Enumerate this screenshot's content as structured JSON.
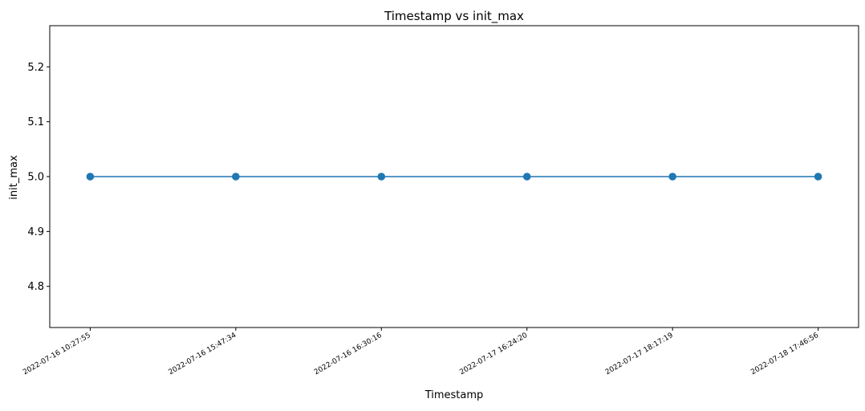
{
  "chart_data": {
    "type": "line",
    "title": "Timestamp vs init_max",
    "xlabel": "Timestamp",
    "ylabel": "init_max",
    "categories": [
      "2022-07-16 10:27:55",
      "2022-07-16 15:47:34",
      "2022-07-16 16:30:16",
      "2022-07-17 16:24:20",
      "2022-07-17 18:17:19",
      "2022-07-18 17:46:56"
    ],
    "series": [
      {
        "values": [
          5.0,
          5.0,
          5.0,
          5.0,
          5.0,
          5.0
        ],
        "color": "#1f77b4",
        "marker": "circle"
      }
    ],
    "ylim": [
      4.725,
      5.275
    ],
    "yticks": [
      "4.8",
      "4.9",
      "5.0",
      "5.1",
      "5.2"
    ],
    "grid": false,
    "legend": "none"
  }
}
